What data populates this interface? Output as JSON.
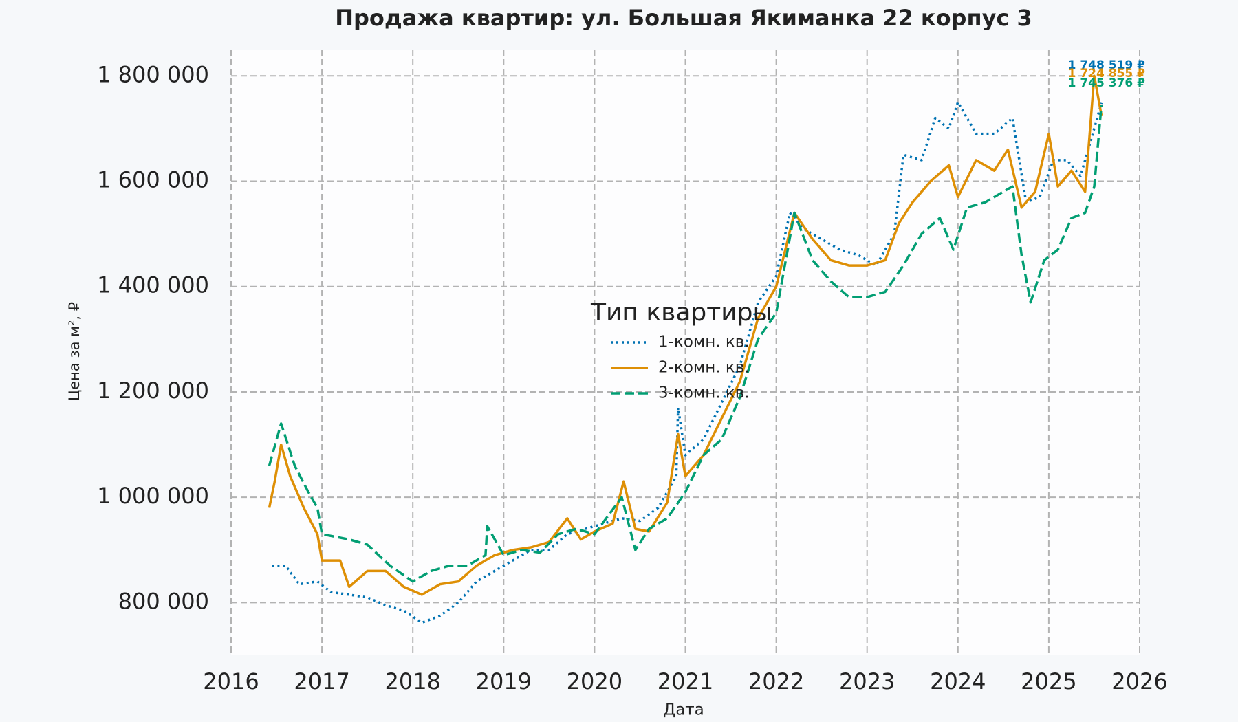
{
  "chart_data": {
    "type": "line",
    "title": "Продажа квартир: ул. Большая Якиманка 22 корпус 3",
    "xlabel": "Дата",
    "ylabel": "Цена за м², ₽",
    "xlim": [
      2016,
      2026
    ],
    "xticks": [
      2016,
      2017,
      2018,
      2019,
      2020,
      2021,
      2022,
      2023,
      2024,
      2025,
      2026
    ],
    "ylim": [
      700000,
      1850000
    ],
    "yticks": [
      {
        "value": 800000,
        "label": "800 000"
      },
      {
        "value": 1000000,
        "label": "1 000 000"
      },
      {
        "value": 1200000,
        "label": "1 200 000"
      },
      {
        "value": 1400000,
        "label": "1 400 000"
      },
      {
        "value": 1600000,
        "label": "1 600 000"
      },
      {
        "value": 1800000,
        "label": "1 800 000"
      }
    ],
    "grid": true,
    "legend": "center",
    "legend_title": "Тип квартиры",
    "series": [
      {
        "name": "1-комн. кв.",
        "color": "#0072b2",
        "linestyle": "dotted",
        "x": [
          2016.45,
          2016.6,
          2016.75,
          2016.95,
          2017.1,
          2017.3,
          2017.5,
          2017.7,
          2017.9,
          2018.1,
          2018.3,
          2018.5,
          2018.7,
          2018.9,
          2019.1,
          2019.3,
          2019.5,
          2019.7,
          2019.9,
          2020.1,
          2020.3,
          2020.5,
          2020.7,
          2020.9,
          2020.92,
          2021.0,
          2021.2,
          2021.4,
          2021.6,
          2021.8,
          2022.0,
          2022.15,
          2022.3,
          2022.5,
          2022.7,
          2022.9,
          2023.1,
          2023.3,
          2023.4,
          2023.6,
          2023.75,
          2023.9,
          2024.0,
          2024.2,
          2024.4,
          2024.6,
          2024.75,
          2024.9,
          2025.05,
          2025.2,
          2025.35,
          2025.5,
          2025.58
        ],
        "values": [
          870000,
          870000,
          835000,
          840000,
          820000,
          815000,
          810000,
          795000,
          785000,
          762000,
          775000,
          800000,
          840000,
          860000,
          880000,
          900000,
          900000,
          930000,
          940000,
          950000,
          960000,
          955000,
          980000,
          1040000,
          1170000,
          1080000,
          1110000,
          1180000,
          1250000,
          1370000,
          1420000,
          1540000,
          1510000,
          1490000,
          1470000,
          1460000,
          1440000,
          1500000,
          1650000,
          1640000,
          1720000,
          1700000,
          1750000,
          1690000,
          1690000,
          1720000,
          1560000,
          1570000,
          1640000,
          1640000,
          1610000,
          1700000,
          1748519
        ],
        "value_labels": [
          null,
          null,
          null,
          null,
          null,
          null,
          null,
          null,
          null,
          null,
          null,
          null,
          null,
          null,
          null,
          null,
          null,
          null,
          null,
          null,
          null,
          null,
          null,
          null,
          null,
          null,
          null,
          null,
          null,
          null,
          null,
          null,
          null,
          null,
          null,
          null,
          null,
          null,
          null,
          null,
          null,
          null,
          null,
          null,
          null,
          null,
          null,
          null,
          null,
          null,
          null,
          null,
          "1 748 519 ₽"
        ]
      },
      {
        "name": "2-комн. кв.",
        "color": "#de8f05",
        "linestyle": "solid",
        "x": [
          2016.42,
          2016.48,
          2016.55,
          2016.65,
          2016.8,
          2016.95,
          2017.0,
          2017.2,
          2017.3,
          2017.5,
          2017.7,
          2017.9,
          2018.1,
          2018.3,
          2018.5,
          2018.7,
          2018.9,
          2019.1,
          2019.3,
          2019.5,
          2019.7,
          2019.85,
          2020.0,
          2020.2,
          2020.32,
          2020.45,
          2020.6,
          2020.8,
          2020.92,
          2021.0,
          2021.2,
          2021.4,
          2021.6,
          2021.8,
          2022.0,
          2022.2,
          2022.4,
          2022.6,
          2022.8,
          2023.0,
          2023.2,
          2023.35,
          2023.5,
          2023.7,
          2023.9,
          2024.0,
          2024.2,
          2024.4,
          2024.55,
          2024.7,
          2024.85,
          2025.0,
          2025.1,
          2025.25,
          2025.4,
          2025.5,
          2025.58
        ],
        "values": [
          980000,
          1030000,
          1100000,
          1040000,
          980000,
          930000,
          880000,
          880000,
          830000,
          860000,
          860000,
          830000,
          815000,
          835000,
          840000,
          870000,
          890000,
          900000,
          905000,
          915000,
          960000,
          920000,
          935000,
          950000,
          1030000,
          940000,
          935000,
          990000,
          1120000,
          1040000,
          1080000,
          1150000,
          1220000,
          1340000,
          1400000,
          1540000,
          1490000,
          1450000,
          1440000,
          1440000,
          1450000,
          1520000,
          1560000,
          1600000,
          1630000,
          1570000,
          1640000,
          1620000,
          1660000,
          1550000,
          1580000,
          1690000,
          1590000,
          1620000,
          1580000,
          1800000,
          1724855
        ],
        "value_labels": [
          null,
          null,
          null,
          null,
          null,
          null,
          null,
          null,
          null,
          null,
          null,
          null,
          null,
          null,
          null,
          null,
          null,
          null,
          null,
          null,
          null,
          null,
          null,
          null,
          null,
          null,
          null,
          null,
          null,
          null,
          null,
          null,
          null,
          null,
          null,
          null,
          null,
          null,
          null,
          null,
          null,
          null,
          null,
          null,
          null,
          null,
          null,
          null,
          null,
          null,
          null,
          null,
          null,
          null,
          null,
          null,
          "1 724 855 ₽"
        ]
      },
      {
        "name": "3-комн. кв.",
        "color": "#029e73",
        "linestyle": "dashed",
        "x": [
          2016.42,
          2016.55,
          2016.7,
          2016.85,
          2016.95,
          2017.0,
          2017.3,
          2017.5,
          2017.75,
          2018.0,
          2018.2,
          2018.4,
          2018.6,
          2018.8,
          2018.82,
          2019.0,
          2019.2,
          2019.4,
          2019.6,
          2019.8,
          2020.0,
          2020.3,
          2020.45,
          2020.6,
          2020.8,
          2021.0,
          2021.2,
          2021.4,
          2021.6,
          2021.8,
          2022.0,
          2022.2,
          2022.4,
          2022.6,
          2022.8,
          2023.0,
          2023.2,
          2023.4,
          2023.6,
          2023.8,
          2023.95,
          2024.1,
          2024.3,
          2024.5,
          2024.6,
          2024.7,
          2024.8,
          2024.95,
          2025.1,
          2025.25,
          2025.4,
          2025.5,
          2025.58
        ],
        "values": [
          1060000,
          1140000,
          1060000,
          1010000,
          980000,
          930000,
          920000,
          910000,
          870000,
          840000,
          860000,
          870000,
          870000,
          890000,
          945000,
          890000,
          900000,
          895000,
          930000,
          940000,
          930000,
          1000000,
          900000,
          940000,
          960000,
          1010000,
          1080000,
          1110000,
          1190000,
          1300000,
          1350000,
          1540000,
          1450000,
          1410000,
          1380000,
          1380000,
          1390000,
          1440000,
          1500000,
          1530000,
          1470000,
          1550000,
          1560000,
          1580000,
          1590000,
          1460000,
          1370000,
          1450000,
          1470000,
          1530000,
          1540000,
          1590000,
          1745376
        ],
        "value_labels": [
          null,
          null,
          null,
          null,
          null,
          null,
          null,
          null,
          null,
          null,
          null,
          null,
          null,
          null,
          null,
          null,
          null,
          null,
          null,
          null,
          null,
          null,
          null,
          null,
          null,
          null,
          null,
          null,
          null,
          null,
          null,
          null,
          null,
          null,
          null,
          null,
          null,
          null,
          null,
          null,
          null,
          null,
          null,
          null,
          null,
          null,
          null,
          null,
          null,
          null,
          null,
          null,
          "1 745 376 ₽"
        ]
      }
    ]
  }
}
